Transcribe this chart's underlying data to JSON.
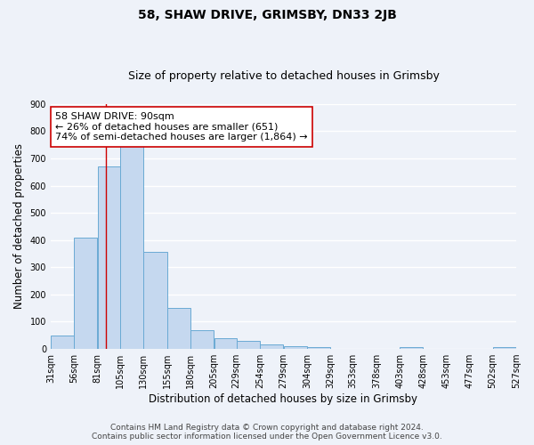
{
  "title": "58, SHAW DRIVE, GRIMSBY, DN33 2JB",
  "subtitle": "Size of property relative to detached houses in Grimsby",
  "xlabel": "Distribution of detached houses by size in Grimsby",
  "ylabel": "Number of detached properties",
  "bar_left_edges": [
    31,
    56,
    81,
    105,
    130,
    155,
    180,
    205,
    229,
    254,
    279,
    304,
    329,
    353,
    378,
    403,
    428,
    453,
    477,
    502
  ],
  "bar_widths": [
    25,
    25,
    24,
    25,
    25,
    25,
    25,
    24,
    25,
    25,
    25,
    25,
    24,
    25,
    25,
    25,
    25,
    24,
    25,
    25
  ],
  "bar_heights": [
    50,
    410,
    670,
    745,
    355,
    150,
    70,
    38,
    30,
    18,
    10,
    8,
    0,
    0,
    0,
    8,
    0,
    0,
    0,
    8
  ],
  "tick_labels": [
    "31sqm",
    "56sqm",
    "81sqm",
    "105sqm",
    "130sqm",
    "155sqm",
    "180sqm",
    "205sqm",
    "229sqm",
    "254sqm",
    "279sqm",
    "304sqm",
    "329sqm",
    "353sqm",
    "378sqm",
    "403sqm",
    "428sqm",
    "453sqm",
    "477sqm",
    "502sqm",
    "527sqm"
  ],
  "bar_color": "#c5d8ef",
  "bar_edge_color": "#6aaad4",
  "property_line_x": 90,
  "property_line_color": "#cc0000",
  "annotation_text_line1": "58 SHAW DRIVE: 90sqm",
  "annotation_text_line2": "← 26% of detached houses are smaller (651)",
  "annotation_text_line3": "74% of semi-detached houses are larger (1,864) →",
  "ylim": [
    0,
    900
  ],
  "xlim": [
    31,
    527
  ],
  "yticks": [
    0,
    100,
    200,
    300,
    400,
    500,
    600,
    700,
    800,
    900
  ],
  "footer_line1": "Contains HM Land Registry data © Crown copyright and database right 2024.",
  "footer_line2": "Contains public sector information licensed under the Open Government Licence v3.0.",
  "bg_color": "#eef2f9",
  "grid_color": "#ffffff",
  "title_fontsize": 10,
  "subtitle_fontsize": 9,
  "axis_label_fontsize": 8.5,
  "tick_fontsize": 7,
  "footer_fontsize": 6.5,
  "annot_fontsize": 8
}
